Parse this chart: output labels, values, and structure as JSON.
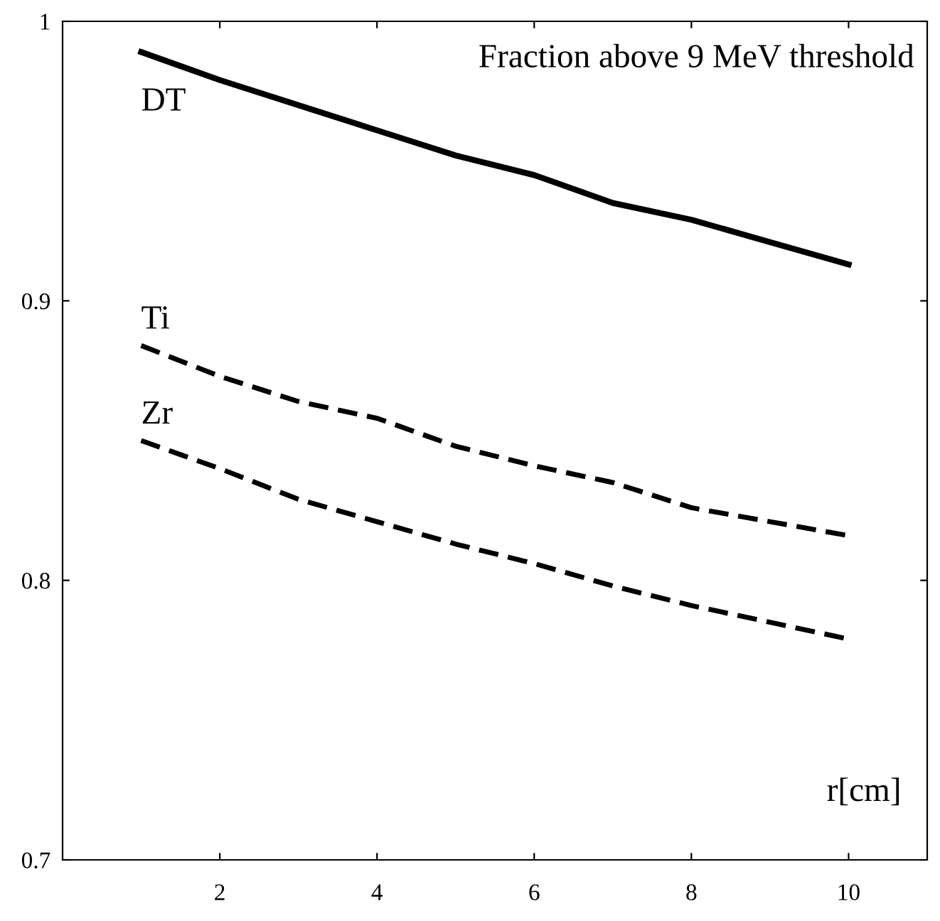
{
  "chart_data": {
    "type": "line",
    "title": "Fraction above 9 MeV threshold",
    "xlabel": "r[cm]",
    "x": [
      1,
      2,
      3,
      4,
      5,
      6,
      7,
      8,
      9,
      10
    ],
    "series": [
      {
        "name": "DT",
        "color": "#000000",
        "line_style": "solid",
        "values": [
          0.989,
          0.979,
          0.97,
          0.961,
          0.952,
          0.945,
          0.935,
          0.929,
          0.921,
          0.913
        ]
      },
      {
        "name": "Ti",
        "color": "#000000",
        "line_style": "dashed",
        "values": [
          0.884,
          0.873,
          0.864,
          0.858,
          0.848,
          0.841,
          0.835,
          0.826,
          0.821,
          0.816
        ]
      },
      {
        "name": "Zr",
        "color": "#000000",
        "line_style": "dashed",
        "values": [
          0.85,
          0.84,
          0.829,
          0.821,
          0.813,
          0.806,
          0.798,
          0.791,
          0.785,
          0.779
        ]
      }
    ],
    "xlim": [
      0,
      11
    ],
    "ylim": [
      0.7,
      1
    ],
    "xticks": [
      2,
      4,
      6,
      8,
      10
    ],
    "yticks": [
      0.7,
      0.8,
      0.9,
      1
    ],
    "grid": false,
    "marker": "none"
  }
}
